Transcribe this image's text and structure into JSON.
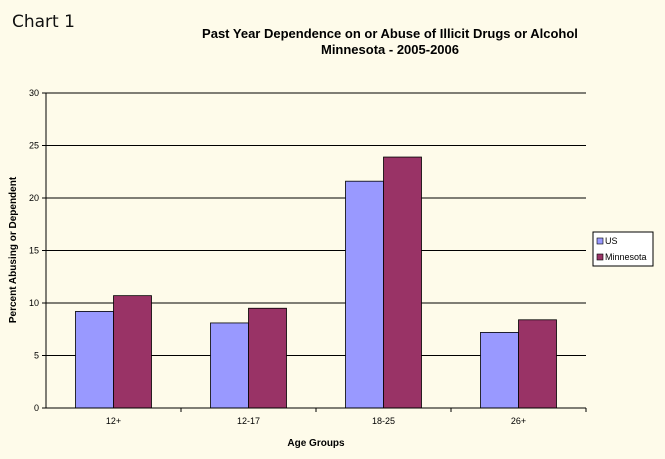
{
  "corner_label": "Chart 1",
  "chart_data": {
    "type": "bar",
    "title": "Past Year Dependence on or Abuse of Illicit Drugs or Alcohol",
    "subtitle": "Minnesota - 2005-2006",
    "xlabel": "Age Groups",
    "ylabel": "Percent Abusing or Dependent",
    "categories": [
      "12+",
      "12-17",
      "18-25",
      "26+"
    ],
    "series": [
      {
        "name": "US",
        "values": [
          9.2,
          8.1,
          21.6,
          7.2
        ],
        "color": "#9999ff"
      },
      {
        "name": "Minnesota",
        "values": [
          10.7,
          9.5,
          23.9,
          8.4
        ],
        "color": "#993366"
      }
    ],
    "ylim": [
      0,
      30
    ],
    "yticks": [
      "0",
      "5",
      "10",
      "15",
      "20",
      "25",
      "30"
    ],
    "grid": true,
    "legend_position": "right"
  }
}
